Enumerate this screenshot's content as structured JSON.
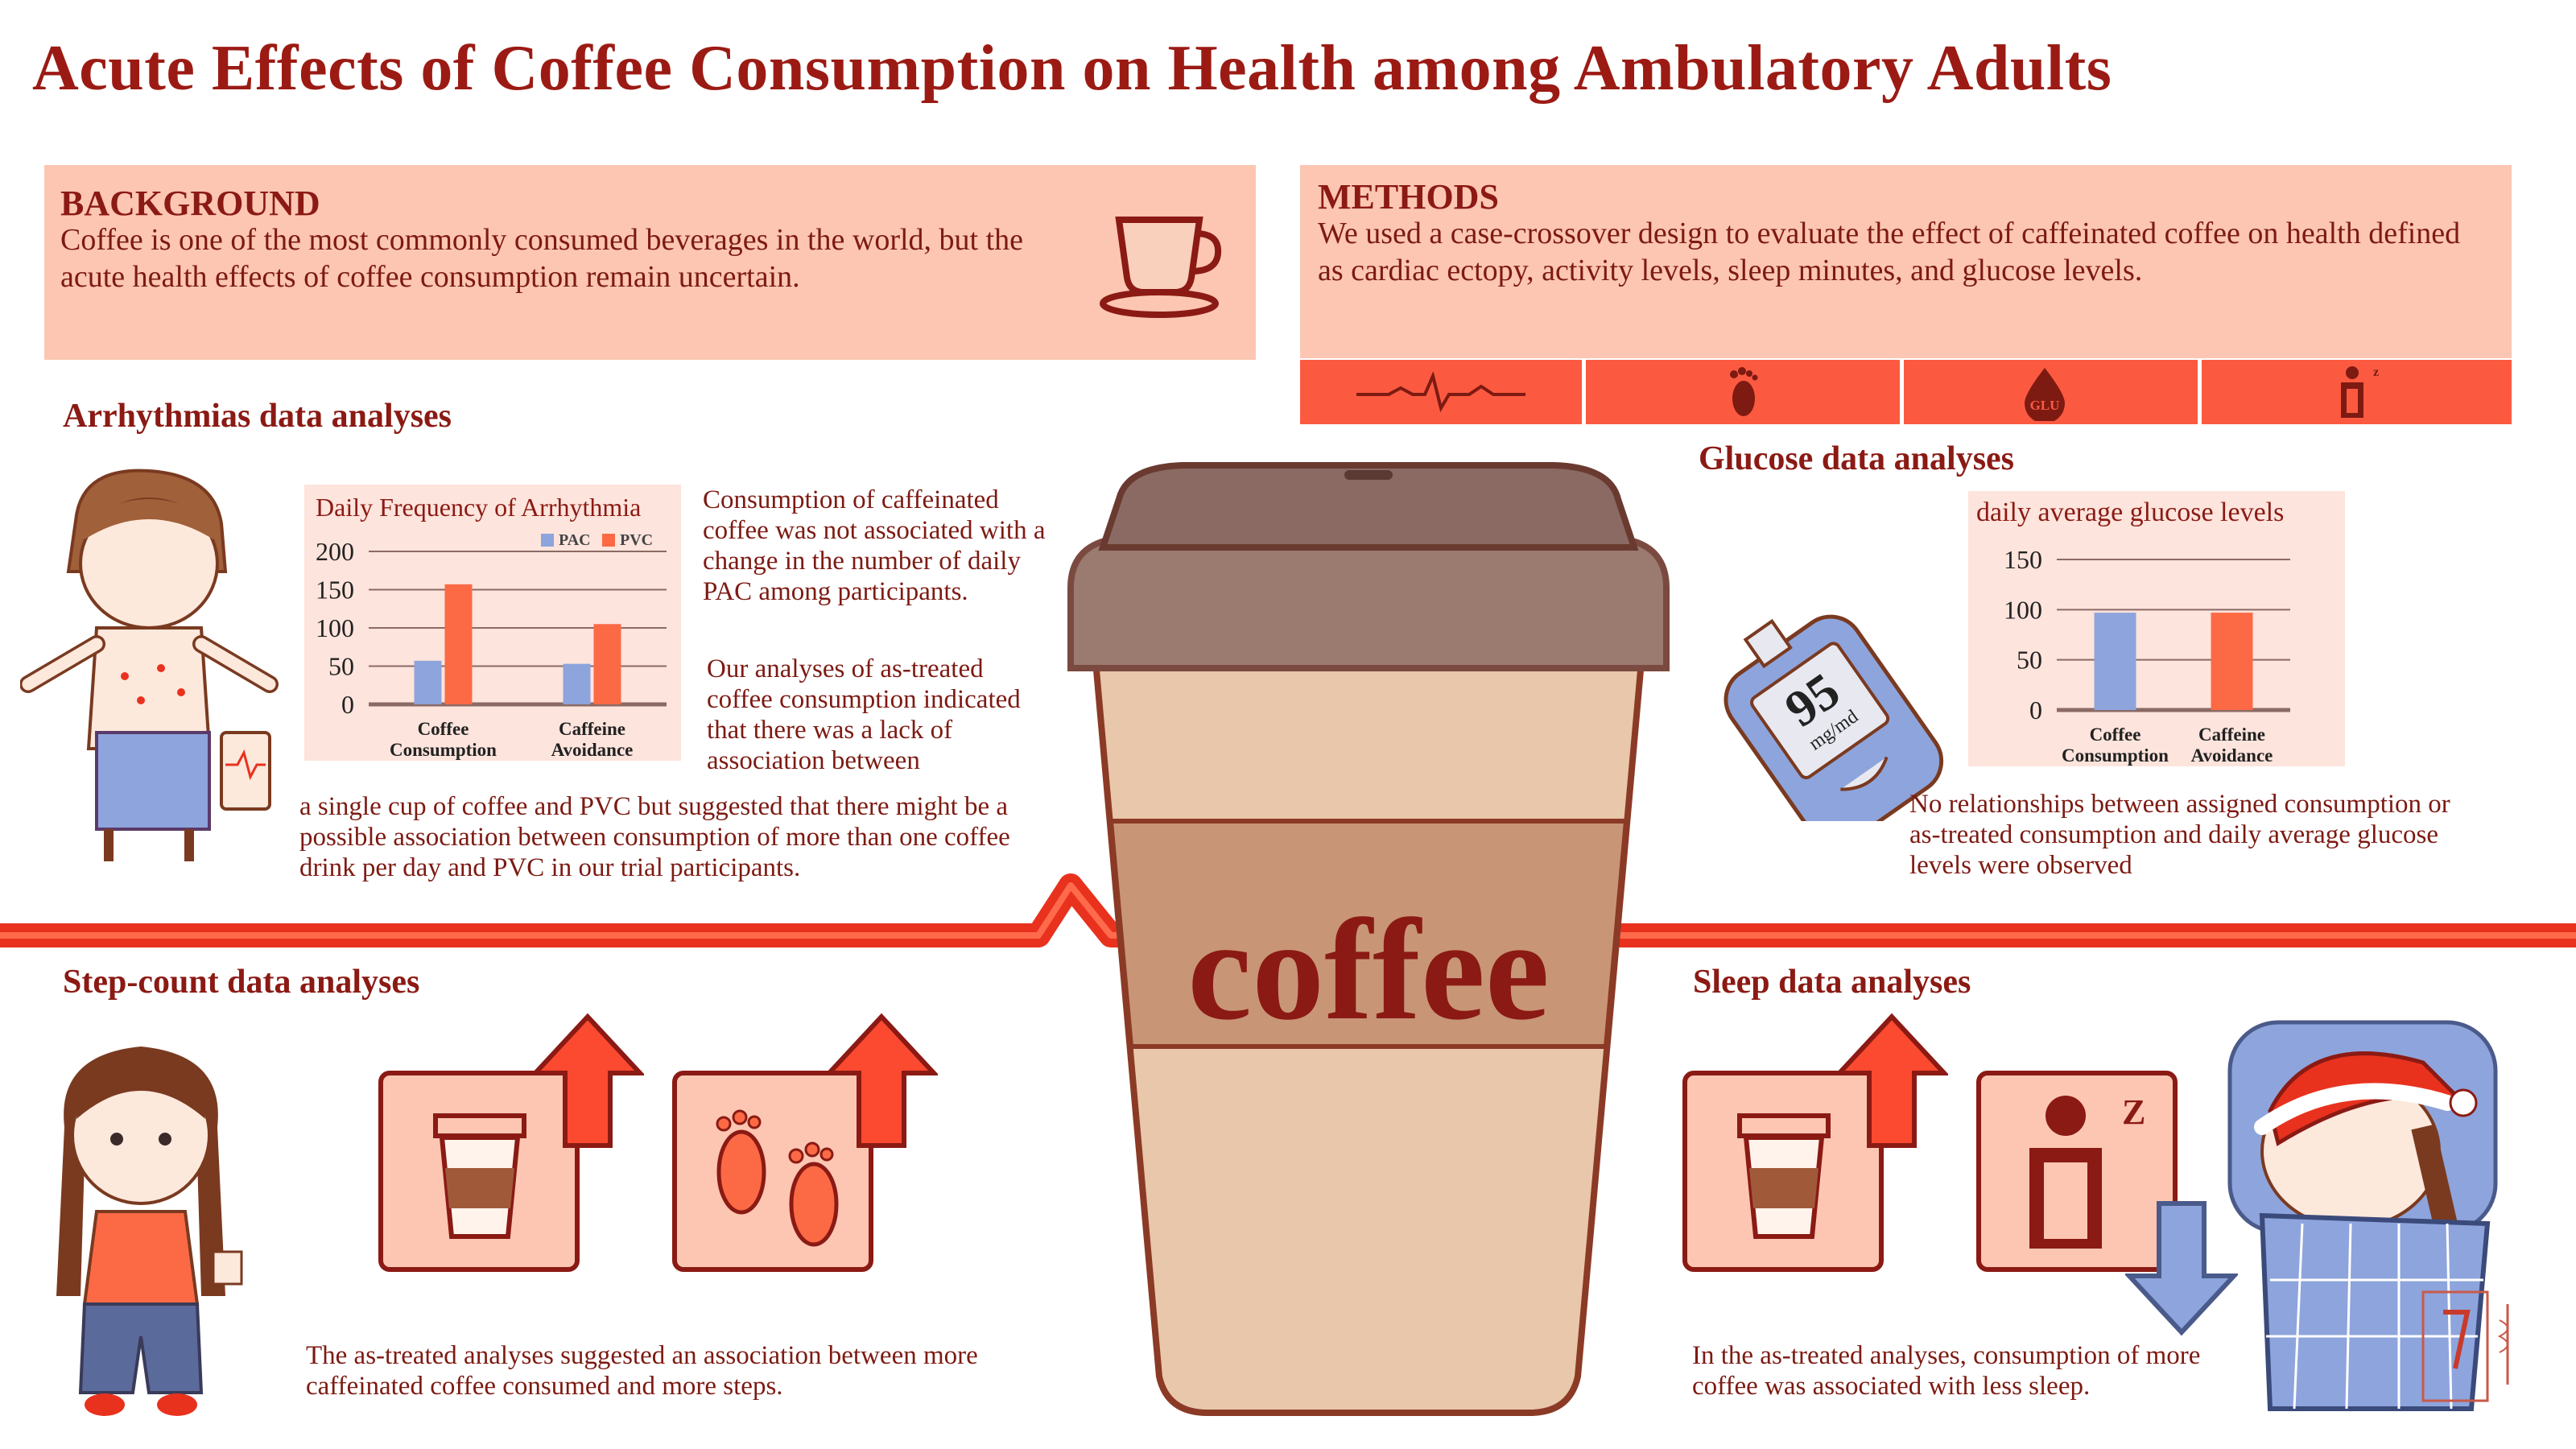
{
  "title": "Acute Effects of Coffee Consumption on Health among Ambulatory Adults",
  "background": {
    "heading": "BACKGROUND",
    "text": "Coffee is one of the most commonly consumed beverages in the world, but the acute health effects of coffee consumption remain uncertain.",
    "icon": "coffee-cup-icon"
  },
  "methods": {
    "heading": "METHODS",
    "text": "We used a case-crossover design to evaluate the effect of caffeinated coffee on health defined as cardiac ectopy, activity levels, sleep minutes, and glucose levels.",
    "icons": [
      "heartbeat-icon",
      "footprint-icon",
      "glucose-drop-icon",
      "sleep-icon"
    ],
    "glucose_icon_label": "GLU",
    "sleep_icon_label": "z"
  },
  "arrhythmias": {
    "heading": "Arrhythmias  data analyses",
    "chart_title": "Daily Frequency of Arrhythmia",
    "text_1": "Consumption of caffeinated coffee was not associated with a change in the number of daily PAC among participants.",
    "text_2": "Our analyses of as-treated coffee consumption indicated that there was a lack of association between",
    "text_3": "a single cup of coffee and PVC but suggested that there might be a possible association between consumption of more than one coffee drink per day and  PVC in our trial participants."
  },
  "glucose": {
    "heading": "Glucose data analyses",
    "chart_title": "daily average glucose levels",
    "meter_value": "95",
    "meter_unit": "mg/md",
    "text": "No relationships between assigned consumption or as-treated consumption and daily average glucose levels were observed"
  },
  "steps": {
    "heading": "Step-count data analyses",
    "text": "The as-treated analyses suggested an association between more caffeinated coffee consumed and more steps."
  },
  "sleep": {
    "heading": "Sleep data analyses",
    "text": "In the as-treated analyses, consumption of more coffee was associated with less sleep.",
    "zz": "Z"
  },
  "cup_label": "coffee",
  "chart_data": [
    {
      "type": "bar",
      "title": "Daily Frequency of Arrhythmia",
      "categories": [
        "Coffee Consumption",
        "Caffeine Avoidance"
      ],
      "series": [
        {
          "name": "PAC",
          "values": [
            57,
            53
          ],
          "color": "#8ea4dc"
        },
        {
          "name": "PVC",
          "values": [
            157,
            105
          ],
          "color": "#fb6a45"
        }
      ],
      "ylim": [
        0,
        200
      ],
      "yticks": [
        "0",
        "50",
        "100",
        "150",
        "200"
      ],
      "legend": "top-right",
      "grid": true
    },
    {
      "type": "bar",
      "title": "daily average glucose levels",
      "categories": [
        "Coffee Consumption",
        "Caffeine Avoidance"
      ],
      "series": [
        {
          "values": [
            97,
            97
          ],
          "colors": [
            "#8ea4dc",
            "#fb6a45"
          ]
        }
      ],
      "ylim": [
        0,
        150
      ],
      "yticks": [
        "0",
        "50",
        "100",
        "150"
      ],
      "grid": true
    }
  ]
}
